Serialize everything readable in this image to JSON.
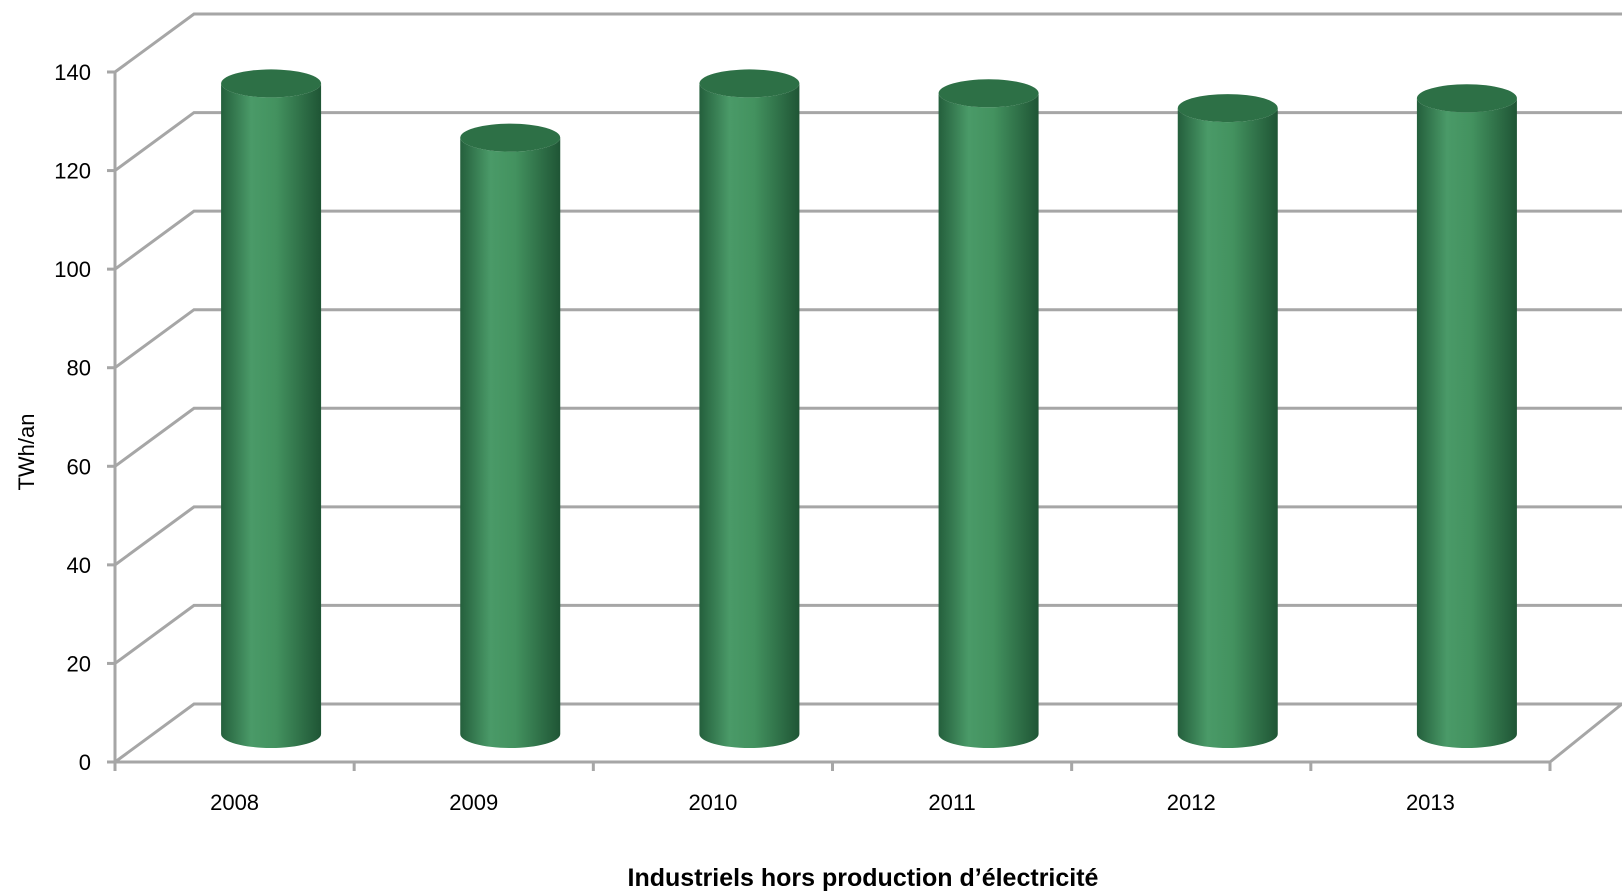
{
  "chart_data": {
    "type": "bar",
    "style": "3d-cylinder",
    "categories": [
      "2008",
      "2009",
      "2010",
      "2011",
      "2012",
      "2013"
    ],
    "values": [
      132,
      121,
      132,
      130,
      127,
      129
    ],
    "ylim": [
      0,
      140
    ],
    "yticks": [
      "0",
      "20",
      "40",
      "60",
      "80",
      "100",
      "120",
      "140"
    ],
    "ylabel": "TWh/an",
    "xlabel": "Industriels hors production d’électricité",
    "grid": true,
    "legend": "none",
    "colors": {
      "bar_light": "#4a9a68",
      "bar_mid": "#3b8a58",
      "bar_dark": "#1f5c38",
      "bar_top": "#2d7046",
      "grid": "#a6a6a6"
    }
  }
}
